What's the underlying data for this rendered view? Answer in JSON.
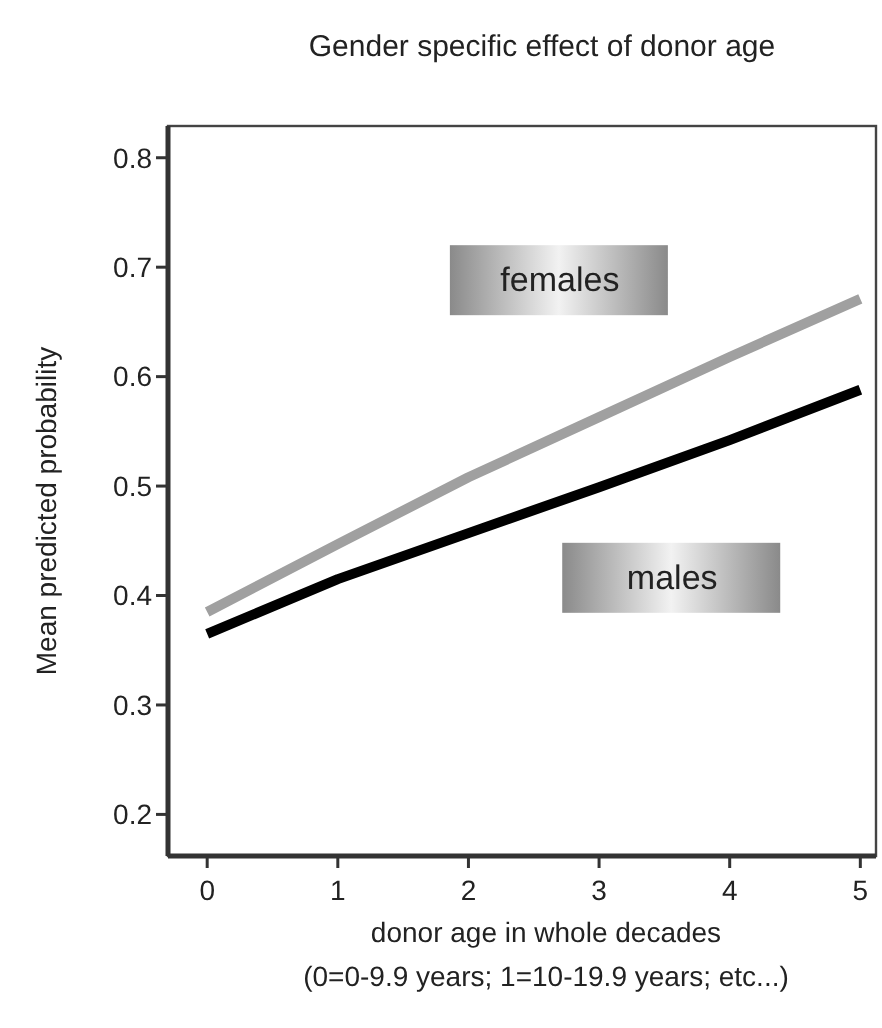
{
  "chart_data": {
    "type": "line",
    "title": "Gender specific effect of donor age",
    "xlabel": "donor age in whole decades",
    "ylabel": "Mean predicted probability",
    "annotations": [
      "(0=0-9.9 years; 1=10-19.9 years; etc...)"
    ],
    "x": [
      0,
      1,
      2,
      3,
      4,
      5
    ],
    "series": [
      {
        "name": "females",
        "color": "#a0a0a0",
        "values": [
          0.385,
          0.447,
          0.508,
          0.563,
          0.618,
          0.671
        ]
      },
      {
        "name": "males",
        "color": "#000000",
        "values": [
          0.365,
          0.415,
          0.457,
          0.499,
          0.542,
          0.588
        ]
      }
    ],
    "xlim": [
      -0.3,
      5.12
    ],
    "ylim": [
      0.162,
      0.829
    ],
    "xticks": [
      0,
      1,
      2,
      3,
      4,
      5
    ],
    "yticks": [
      0.2,
      0.3,
      0.4,
      0.5,
      0.6,
      0.7,
      0.8
    ],
    "grid": false,
    "marker": "none",
    "line_style": "solid"
  }
}
